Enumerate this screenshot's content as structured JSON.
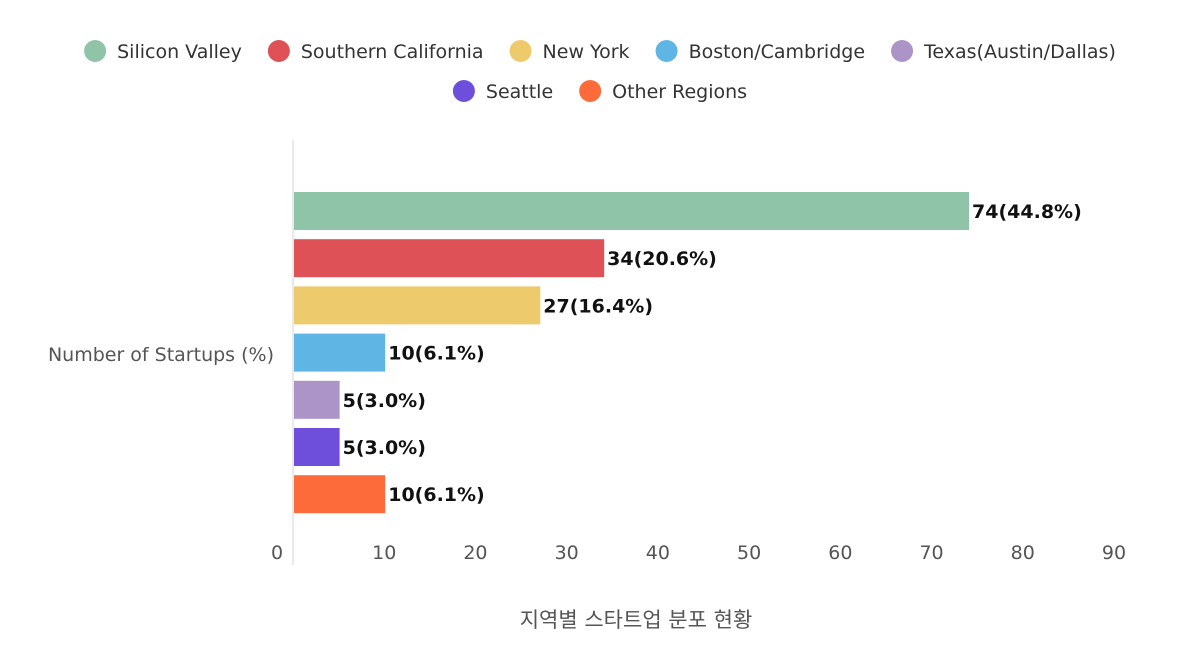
{
  "chart_data": {
    "type": "bar",
    "orientation": "horizontal",
    "category_label": "Number of Startups (%)",
    "xlabel": "지역별 스타트업 분포 현황",
    "xlim": [
      0,
      90
    ],
    "x_ticks": [
      "0",
      "10",
      "20",
      "30",
      "40",
      "50",
      "60",
      "70",
      "80",
      "90"
    ],
    "grid": false,
    "legend_position": "top-center",
    "series": [
      {
        "name": "Silicon Valley",
        "value": 74,
        "label": "74(44.8%)",
        "color": "#8fc4a8"
      },
      {
        "name": "Southern California",
        "value": 34,
        "label": "34(20.6%)",
        "color": "#dd5157"
      },
      {
        "name": "New York",
        "value": 27,
        "label": "27(16.4%)",
        "color": "#edca6b"
      },
      {
        "name": "Boston/Cambridge",
        "value": 10,
        "label": "10(6.1%)",
        "color": "#5fb6e4"
      },
      {
        "name": "Texas(Austin/Dallas)",
        "value": 5,
        "label": "5(3.0%)",
        "color": "#ad94c8"
      },
      {
        "name": "Seattle",
        "value": 5,
        "label": "5(3.0%)",
        "color": "#6e4fdc"
      },
      {
        "name": "Other Regions",
        "value": 10,
        "label": "10(6.1%)",
        "color": "#fd6b3b"
      }
    ]
  }
}
